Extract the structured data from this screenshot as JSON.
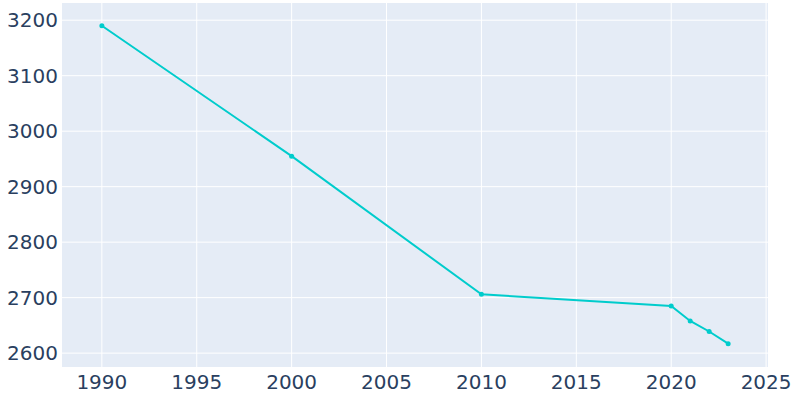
{
  "chart_data": {
    "type": "line",
    "x": [
      1990,
      2000,
      2010,
      2020,
      2021,
      2022,
      2023
    ],
    "values": [
      3190,
      2955,
      2706,
      2685,
      2658,
      2639,
      2617
    ],
    "color": "#00cccc",
    "marker": "circle",
    "xlim": [
      1987.9,
      2025.1
    ],
    "xticks": [
      1990,
      1995,
      2000,
      2005,
      2010,
      2015,
      2020,
      2025
    ],
    "ylim": [
      2575,
      3231
    ],
    "yticks": [
      2600,
      2700,
      2800,
      2900,
      3000,
      3100,
      3200
    ],
    "grid": true
  }
}
